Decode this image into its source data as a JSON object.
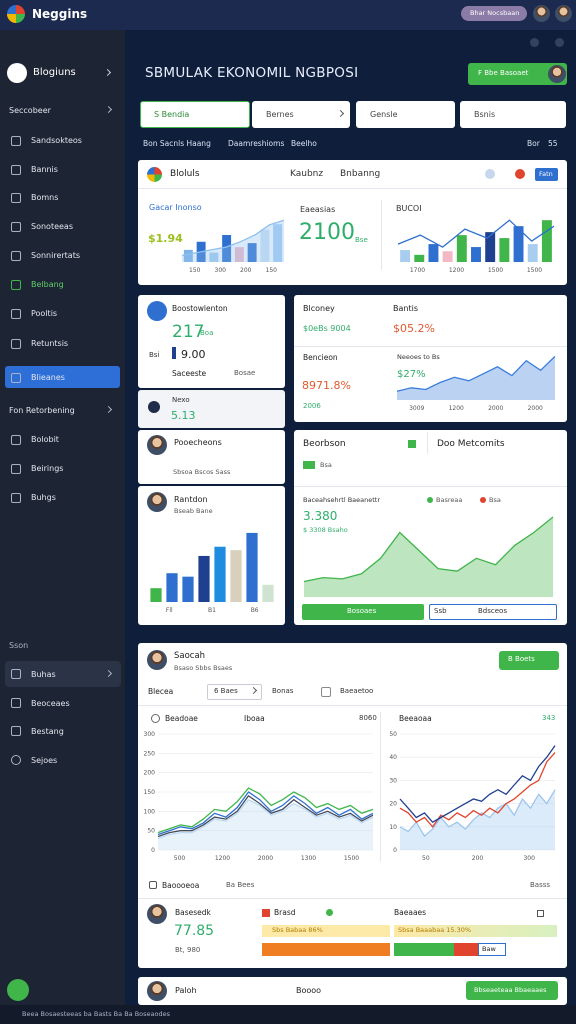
{
  "header": {
    "brand": "Neggins",
    "pill": "Bhar Nocsbaan"
  },
  "sidebar": {
    "title": "Blogiuns",
    "items": [
      "Seccobeer",
      "Sandsokteos",
      "Bannis",
      "Bomns",
      "Sonoteeas",
      "Sonnirertats",
      "Belbang",
      "Pooltis",
      "Retuntsis",
      "Blieanes",
      "Fon Retorbening",
      "Bolobit",
      "Beirings",
      "Buhgs"
    ],
    "section": "Sson",
    "items2": [
      "Buhas",
      "Beoceaes",
      "Bestang",
      "Sejoes"
    ]
  },
  "page": {
    "title": "SBMULAK EKONOMIL NGBPOSI",
    "action": "F Bbe Basoaet",
    "filters": [
      "S Bendia",
      "Bernes",
      "Gensle",
      "Bsnis"
    ],
    "tabs": [
      "Bon Sacnls Haang",
      "Daamreshioms",
      "Beelho"
    ],
    "tab_right": "Bor",
    "tab_count": "55"
  },
  "overview": {
    "title": "Bloluls",
    "tabs": [
      "Kaubnz",
      "Bnbanng"
    ],
    "badge": "Fatn",
    "left": {
      "label": "Gacar Inonso",
      "value": "$1.94",
      "chart": {
        "type": "bar",
        "values": [
          18,
          30,
          14,
          40,
          22,
          28,
          48,
          56
        ],
        "colors": [
          "#7fb3e8",
          "#2e6fd0",
          "#a8cdee",
          "#2e6fd0",
          "#f2b8c6",
          "#2e6fd0",
          "#cfe3f6",
          "#a9d0f5"
        ],
        "series": [
          {
            "color": "#8ec1ee",
            "fill": true,
            "values": [
              10,
              14,
              18,
              22,
              30,
              40,
              55,
              62
            ]
          }
        ],
        "xlabels": [
          "150",
          "300",
          "200",
          "150"
        ]
      }
    },
    "middle": {
      "label": "Eaeasias",
      "value": "2100",
      "unit": "Bse"
    },
    "right": {
      "label": "BUCOI",
      "chart": {
        "type": "bar",
        "values": [
          20,
          12,
          30,
          18,
          45,
          25,
          50,
          40,
          60,
          30,
          70
        ],
        "colors": [
          "#a8cdee",
          "#3fb54a",
          "#2e6fd0",
          "#f2b8c6",
          "#3fb54a",
          "#2e6fd0",
          "#1f3f8f",
          "#3fb54a",
          "#2e6fd0",
          "#a8cdee",
          "#3fb54a"
        ],
        "series": [
          {
            "color": "#2e6fd0",
            "fill": false,
            "values": [
              30,
              45,
              25,
              55,
              40,
              70,
              35,
              60
            ]
          }
        ],
        "xlabels": [
          "1700",
          "1200",
          "1500",
          "1500"
        ]
      }
    }
  },
  "stats": {
    "title": "Boostowlenton",
    "value": "217",
    "value_note": "Boa",
    "sub_label": "Bsi",
    "sub_value": "9.00",
    "foot_label": "Saceeste",
    "foot_value": "Bosae"
  },
  "next": {
    "label": "Nexo",
    "value": "5.13"
  },
  "person1": {
    "name": "Pooecheons",
    "note": "Sbsoa Bscos Sass"
  },
  "person2": {
    "name": "Rantdon",
    "note": "Bseab Bane",
    "chart": {
      "type": "bar",
      "values": [
        12,
        25,
        22,
        40,
        48,
        45,
        60,
        15
      ],
      "colors": [
        "#3fb54a",
        "#2e6fd0",
        "#2e6fd0",
        "#1f3f8f",
        "#1f8ce0",
        "#d8d0bb",
        "#2e6fd0",
        "#cfe3d0"
      ],
      "xlabels": [
        "Fll",
        "B1",
        "B6"
      ]
    }
  },
  "balance": {
    "left_label": "Blconey",
    "left_value": "$0eBs 9004",
    "right_label": "Bantis",
    "right_value": "$05.2%",
    "sub_label": "Bencieon",
    "sub_value": "8971.8%",
    "sub_note": "2006",
    "chart_title": "Neeoes to Bs",
    "chart_label": "$27%",
    "chart": {
      "type": "line",
      "series": [
        {
          "color": "#3b7ddd",
          "fill": true,
          "values": [
            10,
            14,
            12,
            20,
            26,
            22,
            30,
            38,
            28,
            45,
            34,
            50
          ]
        }
      ],
      "xlabels": [
        "3009",
        "1200",
        "2000",
        "2000"
      ]
    }
  },
  "metrics": {
    "title": "Beorbson",
    "title2": "Doo Metcomits",
    "tag": "Bsa",
    "subtitle": "Baceahsehrtl Baeanettr",
    "legend": [
      "Basreaa",
      "Bsa"
    ],
    "value": "3.380",
    "value_note": "$ 3308 Bsaho",
    "chart": {
      "type": "line",
      "series": [
        {
          "color": "#3fb54a",
          "fill": true,
          "values": [
            12,
            15,
            14,
            18,
            30,
            50,
            36,
            22,
            20,
            30,
            25,
            40,
            50,
            62
          ]
        }
      ]
    },
    "buttons": [
      "Bosoaes",
      "Bdsceos"
    ],
    "button_tag": "Ssb"
  },
  "analysis": {
    "name": "Saocah",
    "note": "Bsaso Sbbs Bsaes",
    "action": "B Boets",
    "filter_label": "Blecea",
    "select": "6 Baes",
    "filter2": "Bonas",
    "filter3": "Baeaetoo",
    "left": {
      "title": "Beadoae",
      "tag": "Iboaa",
      "note": "8060",
      "chart": {
        "type": "line",
        "ylim": [
          0,
          300
        ],
        "yticks": [
          0,
          50,
          100,
          150,
          200,
          250,
          300
        ],
        "xlabels": [
          "500",
          "1200",
          "2000",
          "1300",
          "1500"
        ],
        "series": [
          {
            "color": "#bcd9f2",
            "fill": true,
            "values": [
              30,
              40,
              45,
              45,
              60,
              80,
              75,
              95,
              130,
              115,
              90,
              100,
              120,
              105,
              85,
              95,
              80,
              90,
              70,
              85
            ]
          },
          {
            "color": "#2e6fd0",
            "fill": false,
            "values": [
              40,
              50,
              60,
              55,
              70,
              95,
              85,
              110,
              150,
              130,
              100,
              115,
              140,
              120,
              95,
              110,
              90,
              105,
              80,
              95
            ]
          },
          {
            "color": "#3fb54a",
            "fill": false,
            "values": [
              45,
              55,
              65,
              60,
              80,
              105,
              100,
              125,
              160,
              145,
              115,
              130,
              150,
              135,
              110,
              120,
              105,
              115,
              95,
              105
            ]
          },
          {
            "color": "#444c5c",
            "fill": false,
            "values": [
              35,
              45,
              50,
              50,
              65,
              85,
              80,
              100,
              140,
              120,
              95,
              105,
              130,
              110,
              90,
              100,
              85,
              95,
              75,
              90
            ]
          }
        ]
      }
    },
    "right": {
      "title": "Beeaoaa",
      "note": "343",
      "chart": {
        "type": "line",
        "ylim": [
          0,
          50
        ],
        "yticks": [
          0,
          10,
          20,
          30,
          40,
          50
        ],
        "xlabels": [
          "50",
          "200",
          "300"
        ],
        "series": [
          {
            "color": "#9cc6ee",
            "fill": true,
            "values": [
              10,
              8,
              12,
              6,
              9,
              14,
              10,
              12,
              9,
              13,
              16,
              14,
              18,
              20,
              15,
              22,
              18,
              24,
              20,
              26
            ]
          },
          {
            "color": "#e0442e",
            "fill": false,
            "values": [
              18,
              16,
              12,
              14,
              10,
              15,
              13,
              16,
              14,
              17,
              15,
              18,
              16,
              20,
              22,
              25,
              28,
              30,
              38,
              42
            ]
          },
          {
            "color": "#1f3f8f",
            "fill": false,
            "values": [
              22,
              18,
              14,
              16,
              12,
              14,
              16,
              18,
              20,
              22,
              21,
              24,
              26,
              24,
              28,
              32,
              30,
              36,
              40,
              45
            ]
          }
        ]
      }
    },
    "foot": [
      "Baoooeoa",
      "Ba Bees",
      "Basss"
    ],
    "summary": {
      "name": "Basesedk",
      "value": "77.85",
      "note": "Bt, 980",
      "tag1": "Brasd",
      "left_bar_label": "Sbs Babaa 86%",
      "right_title": "Baeaaes",
      "right_bar_label": "Sbsa Baaabaa 15.30%",
      "box": "Baw"
    }
  },
  "bottom": {
    "name": "Paloh",
    "label": "Boooo",
    "action": "Bbseaeteaa Bbaeaaes"
  },
  "footer": "Beea Bosaesteeas ba Basts Ba Ba Boseaodes"
}
